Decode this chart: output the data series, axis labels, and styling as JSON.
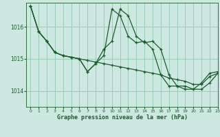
{
  "title": "Graphe pression niveau de la mer (hPa)",
  "background_color": "#cce8e0",
  "grid_color": "#99ccbb",
  "line_color": "#1a5c2a",
  "xlim": [
    -0.5,
    23
  ],
  "ylim": [
    1013.5,
    1016.75
  ],
  "yticks": [
    1014,
    1015,
    1016
  ],
  "xticks": [
    0,
    1,
    2,
    3,
    4,
    5,
    6,
    7,
    8,
    9,
    10,
    11,
    12,
    13,
    14,
    15,
    16,
    17,
    18,
    19,
    20,
    21,
    22,
    23
  ],
  "series": [
    [
      1016.65,
      1015.85,
      1015.55,
      1015.2,
      1015.1,
      1015.05,
      1015.0,
      1014.95,
      1014.9,
      1014.85,
      1014.8,
      1014.75,
      1014.7,
      1014.65,
      1014.6,
      1014.55,
      1014.5,
      1014.4,
      1014.35,
      1014.3,
      1014.2,
      1014.2,
      1014.45,
      1014.55
    ],
    [
      1016.65,
      1015.85,
      1015.55,
      1015.2,
      1015.1,
      1015.05,
      1015.0,
      1014.6,
      1014.85,
      1015.1,
      1016.55,
      1016.35,
      1015.7,
      1015.5,
      1015.55,
      1015.3,
      1014.5,
      1014.15,
      1014.15,
      1014.05,
      1014.05,
      1014.25,
      1014.55,
      1014.6
    ],
    [
      1016.65,
      1015.85,
      1015.55,
      1015.2,
      1015.1,
      1015.05,
      1015.0,
      1014.6,
      1014.85,
      1015.3,
      1015.55,
      1016.55,
      1016.35,
      1015.7,
      1015.5,
      1015.55,
      1015.3,
      1014.5,
      1014.15,
      1014.15,
      1014.05,
      1014.05,
      1014.25,
      1014.55
    ]
  ]
}
